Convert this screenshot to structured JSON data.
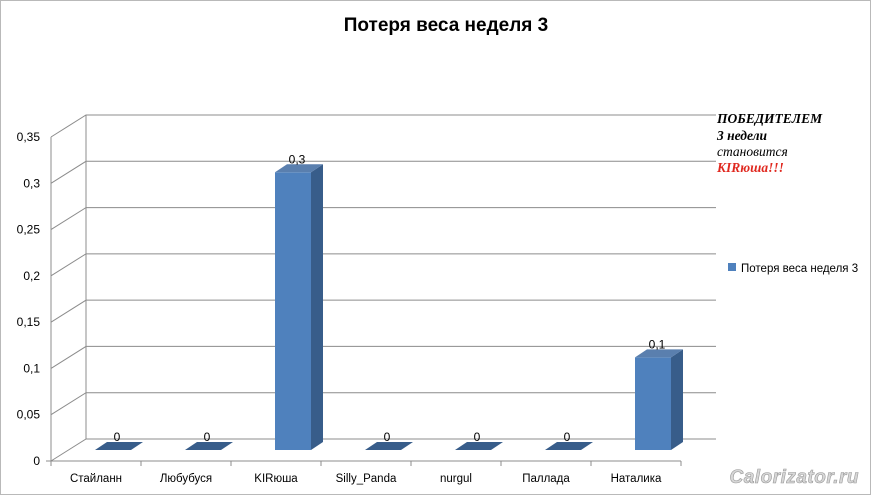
{
  "chart_data": {
    "type": "bar",
    "title": "Потеря веса неделя 3",
    "categories": [
      "Стайланн",
      "Любубуся",
      "KIRюша",
      "Silly_Panda",
      "nurgul",
      "Паллада",
      "Наталика"
    ],
    "series": [
      {
        "name": "Потеря веса неделя 3",
        "values": [
          0,
          0,
          0.3,
          0,
          0,
          0,
          0.1
        ]
      }
    ],
    "data_labels": [
      "0",
      "0",
      "0,3",
      "0",
      "0",
      "0",
      "0,1"
    ],
    "yticks": [
      0,
      0.05,
      0.1,
      0.15,
      0.2,
      0.25,
      0.3,
      0.35
    ],
    "ytick_labels": [
      "0",
      "0,05",
      "0,1",
      "0,15",
      "0,2",
      "0,25",
      "0,3",
      "0,35"
    ],
    "ylim": [
      0,
      0.35
    ],
    "xlabel": "",
    "ylabel": "",
    "grid": true,
    "style": "3d-column",
    "legend_position": "right"
  },
  "annotation": {
    "line1": "ПОБЕДИТЕЛЕМ",
    "line2": "3 недели",
    "line3": "становится",
    "line4": "KIRюша!!!"
  },
  "watermark": "Calorizator.ru",
  "colors": {
    "bar_front": "#4F81BD",
    "bar_side": "#385D8A",
    "bar_top": "#5A7FAE",
    "grid": "#8c8c8c",
    "annotation_highlight": "#e0281f"
  }
}
